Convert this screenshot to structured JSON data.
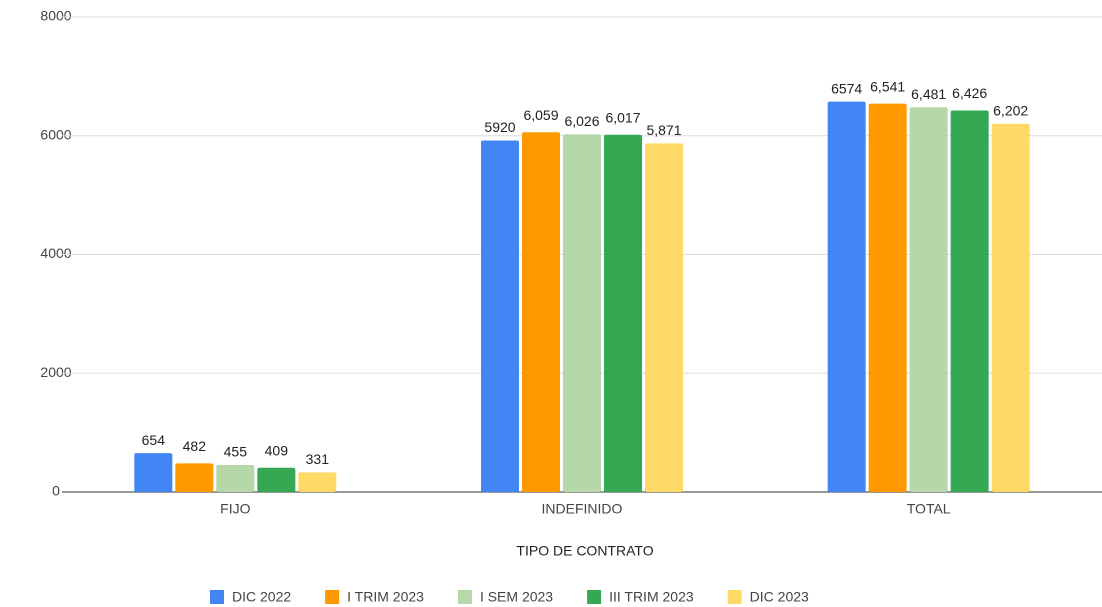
{
  "chart_data": {
    "type": "bar",
    "x_label": "TIPO DE CONTRATO",
    "categories": [
      "FIJO",
      "INDEFINIDO",
      "TOTAL"
    ],
    "series": [
      {
        "name": "DIC 2022",
        "color": "#4285f4",
        "values": [
          654,
          5920,
          6574
        ]
      },
      {
        "name": "I TRIM 2023",
        "color": "#ff9900",
        "values": [
          482,
          6059,
          6541
        ],
        "value_labels": [
          "482",
          "6,059",
          "6,541"
        ]
      },
      {
        "name": "I SEM 2023",
        "color": "#b6d7a8",
        "values": [
          455,
          6026,
          6481
        ],
        "value_labels": [
          "455",
          "6,026",
          "6,481"
        ]
      },
      {
        "name": "III TRIM 2023",
        "color": "#34a853",
        "values": [
          409,
          6017,
          6426
        ],
        "value_labels": [
          "409",
          "6,017",
          "6,426"
        ]
      },
      {
        "name": "DIC 2023",
        "color": "#ffd966",
        "values": [
          331,
          5871,
          6202
        ],
        "value_labels": [
          "331",
          "5,871",
          "6,202"
        ]
      }
    ],
    "ylim": [
      0,
      8000
    ],
    "yticks": [
      0,
      2000,
      4000,
      6000,
      8000
    ],
    "grid": true,
    "legend": "bottom"
  }
}
